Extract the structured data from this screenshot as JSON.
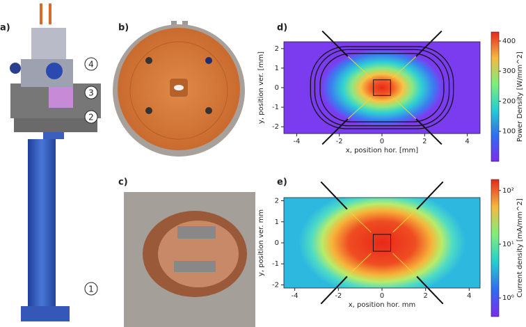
{
  "panel_labels": [
    "a)",
    "b)",
    "c)",
    "d)",
    "e)"
  ],
  "callouts": [
    "4",
    "3",
    "2",
    "1"
  ],
  "chart_data": [
    {
      "type": "heatmap",
      "x_label": "x, position hor. [mm]",
      "y_label": "y, position ver. [mm]",
      "xlim": [
        -4.6,
        4.6
      ],
      "ylim": [
        -2.35,
        2.35
      ],
      "xticks": [
        -4,
        -2,
        0,
        2,
        4
      ],
      "yticks": [
        -2,
        -1,
        0,
        1,
        2
      ],
      "colorbar_label": "Power Density [W/mm^2]",
      "clim": [
        0,
        430
      ],
      "cticks": [
        100,
        200,
        300,
        400
      ],
      "colorbar_scale": "linear",
      "colormap": "rainbow",
      "contours": true
    },
    {
      "type": "heatmap",
      "x_label": "x, position hor. mm",
      "y_label": "y, position ver. mm",
      "xlim": [
        -4.5,
        4.5
      ],
      "ylim": [
        -2.15,
        2.15
      ],
      "xticks": [
        -4,
        -2,
        0,
        2,
        4
      ],
      "yticks": [
        -2,
        -1,
        0,
        1,
        2
      ],
      "colorbar_label": "Current density [mA/mm^2]",
      "clim": [
        0.45,
        160
      ],
      "cticks": [
        {
          "value": 1,
          "label": "10⁰"
        },
        {
          "value": 10,
          "label": "10¹"
        },
        {
          "value": 100,
          "label": "10²"
        }
      ],
      "colorbar_scale": "log",
      "colormap": "rainbow",
      "contours": false
    }
  ]
}
